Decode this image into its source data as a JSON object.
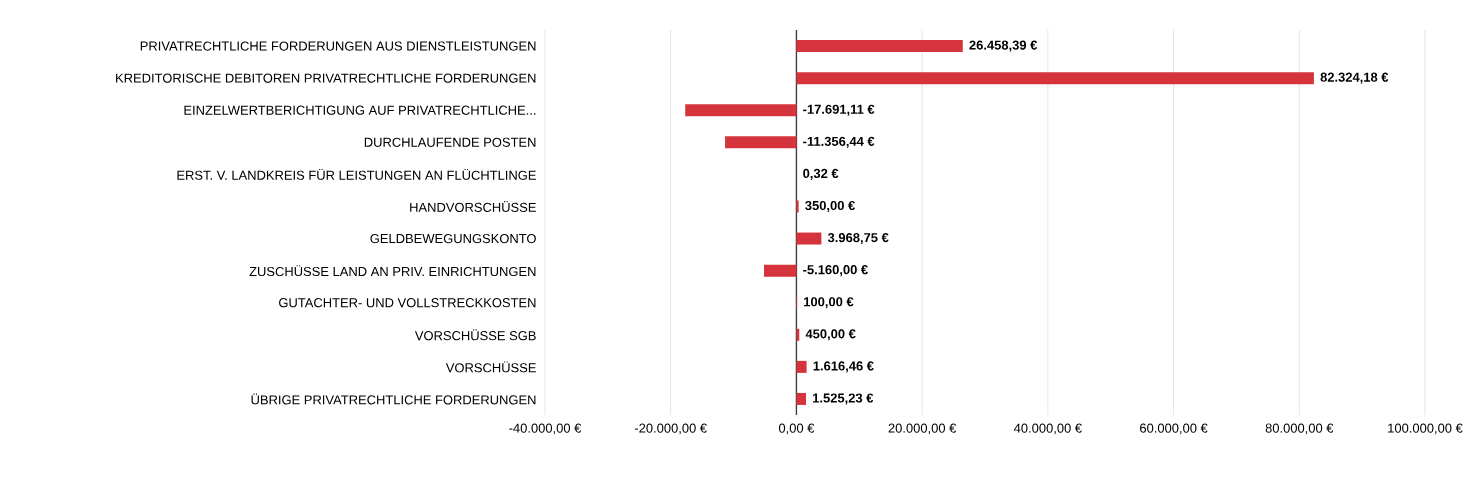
{
  "chart_data": {
    "type": "bar",
    "orientation": "horizontal",
    "categories": [
      "PRIVATRECHTLICHE FORDERUNGEN AUS DIENSTLEISTUNGEN",
      "KREDITORISCHE DEBITOREN PRIVATRECHTLICHE FORDERUNGEN",
      "EINZELWERTBERICHTIGUNG AUF PRIVATRECHTLICHE...",
      "DURCHLAUFENDE POSTEN",
      "ERST. V. LANDKREIS FÜR LEISTUNGEN AN FLÜCHTLINGE",
      "HANDVORSCHÜSSE",
      "GELDBEWEGUNGSKONTO",
      "ZUSCHÜSSE LAND AN PRIV. EINRICHTUNGEN",
      "GUTACHTER- UND VOLLSTRECKKOSTEN",
      "VORSCHÜSSE SGB",
      "VORSCHÜSSE",
      "ÜBRIGE PRIVATRECHTLICHE FORDERUNGEN"
    ],
    "values": [
      26458.39,
      82324.18,
      -17691.11,
      -11356.44,
      0.32,
      350.0,
      3968.75,
      -5160.0,
      100.0,
      450.0,
      1616.46,
      1525.23
    ],
    "value_labels": [
      "26.458,39 €",
      "82.324,18 €",
      "-17.691,11 €",
      "-11.356,44 €",
      "0,32 €",
      "350,00 €",
      "3.968,75 €",
      "-5.160,00 €",
      "100,00 €",
      "450,00 €",
      "1.616,46 €",
      "1.525,23 €"
    ],
    "color": "#d6343c",
    "xlim": [
      -40000,
      100000
    ],
    "xticks": [
      {
        "value": -40000,
        "label": "-40.000,00 €"
      },
      {
        "value": -20000,
        "label": "-20.000,00 €"
      },
      {
        "value": 0,
        "label": "0,00 €"
      },
      {
        "value": 20000,
        "label": "20.000,00 €"
      },
      {
        "value": 40000,
        "label": "40.000,00 €"
      },
      {
        "value": 60000,
        "label": "60.000,00 €"
      },
      {
        "value": 80000,
        "label": "80.000,00 €"
      },
      {
        "value": 100000,
        "label": "100.000,00 €"
      }
    ],
    "grid": "x"
  }
}
